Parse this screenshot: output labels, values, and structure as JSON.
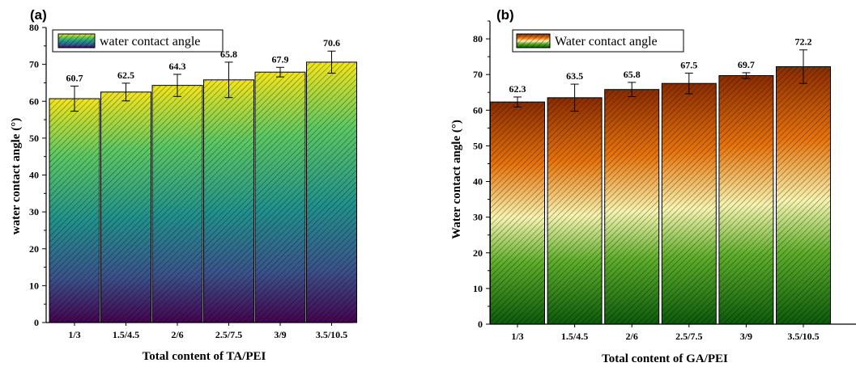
{
  "chart_data": [
    {
      "type": "bar",
      "panel_label": "(a)",
      "title": "",
      "xlabel": "Total content of TA/PEI",
      "ylabel": "water contact angle (°)",
      "ylim": [
        0,
        80
      ],
      "yticks": [
        0,
        10,
        20,
        30,
        40,
        50,
        60,
        70,
        80
      ],
      "categories": [
        "1/3",
        "1.5/4.5",
        "2/6",
        "2.5/7.5",
        "3/9",
        "3.5/10.5"
      ],
      "value_labels": [
        "60.7",
        "62.5",
        "64.3",
        "65.8",
        "67.9",
        "70.6"
      ],
      "series": [
        {
          "name": "water contact angle",
          "values": [
            60.7,
            62.5,
            64.3,
            65.8,
            67.9,
            70.6
          ],
          "errors": [
            3.4,
            2.4,
            3.0,
            4.8,
            1.3,
            3.0
          ]
        }
      ],
      "colors": {
        "gradient_top": "#f3e51c",
        "gradient_mid": "#1f9c89",
        "gradient_bottom": "#44044f"
      },
      "legend_position": "top-left",
      "grid": false
    },
    {
      "type": "bar",
      "panel_label": "(b)",
      "title": "",
      "xlabel": "Total content of GA/PEI",
      "ylabel": "Water contact angle (°)",
      "ylim": [
        0,
        85
      ],
      "yticks": [
        0,
        10,
        20,
        30,
        40,
        50,
        60,
        70,
        80
      ],
      "categories": [
        "1/3",
        "1.5/4.5",
        "2/6",
        "2.5/7.5",
        "3/9",
        "3.5/10.5"
      ],
      "value_labels": [
        "62.3",
        "63.5",
        "65.8",
        "67.5",
        "69.7",
        "72.2"
      ],
      "series": [
        {
          "name": "Water contact angle",
          "values": [
            62.3,
            63.5,
            65.8,
            67.5,
            69.7,
            72.2
          ],
          "errors": [
            1.4,
            3.8,
            2.0,
            2.9,
            0.8,
            4.7
          ]
        }
      ],
      "colors": {
        "gradient_top": "#8a2c00",
        "gradient_upper": "#e7730a",
        "gradient_mid": "#f6f4b0",
        "gradient_lower": "#5fae2c",
        "gradient_bottom": "#0c5a0c"
      },
      "legend_position": "top-left",
      "grid": false
    }
  ]
}
